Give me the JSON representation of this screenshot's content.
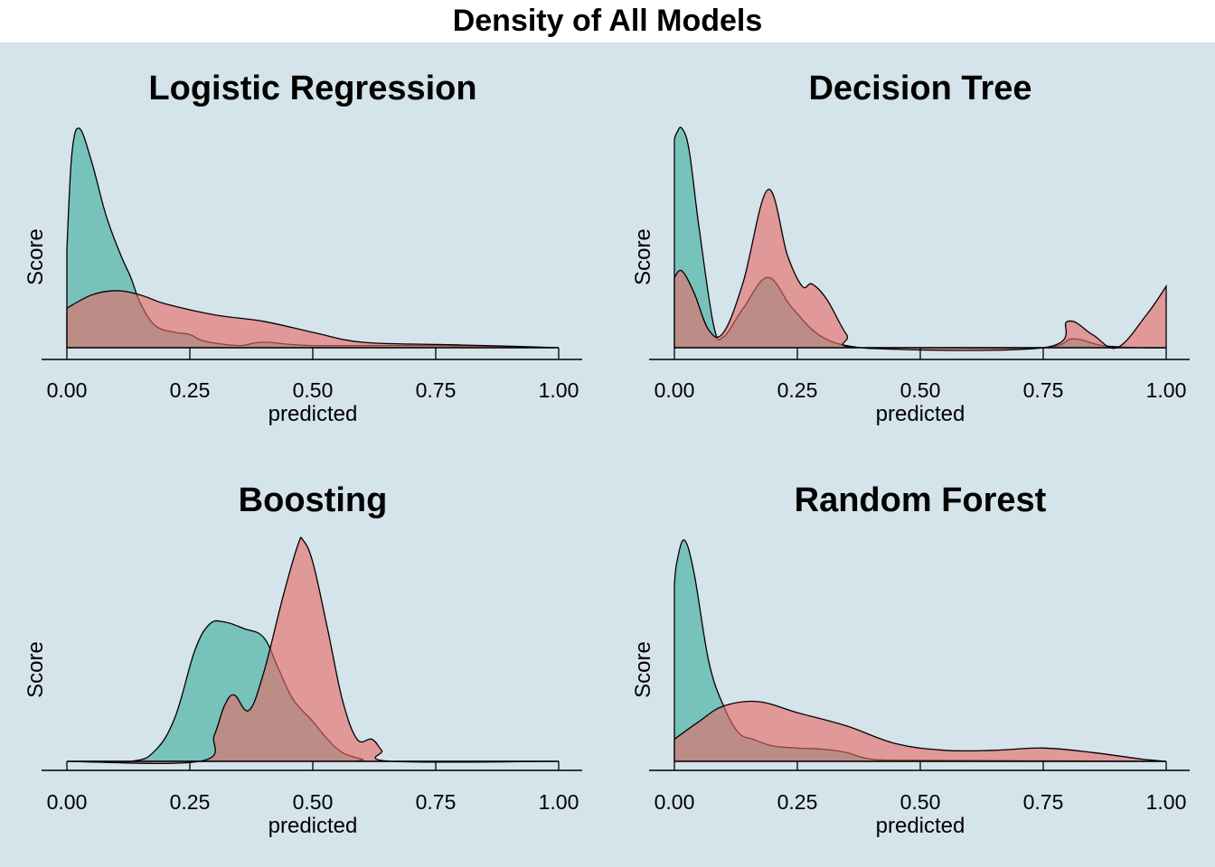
{
  "title": "Density of All Models",
  "colors": {
    "background": "#d5e3ea",
    "series_a": "#3eaf9c",
    "series_b": "#e66a66",
    "axis": "#000000"
  },
  "chart_data": [
    {
      "type": "area",
      "title": "Logistic Regression",
      "xlabel": "predicted",
      "ylabel": "Score",
      "xlim": [
        0,
        1
      ],
      "x_ticks": [
        "0.00",
        "0.25",
        "0.50",
        "0.75",
        "1.00"
      ],
      "y_ticks_shown": false,
      "grid": false,
      "series": [
        {
          "x": [
            0,
            0.01,
            0.025,
            0.05,
            0.08,
            0.11,
            0.13,
            0.15,
            0.18,
            0.22,
            0.25,
            0.28,
            0.35,
            0.4,
            0.5,
            0.75,
            1.0
          ],
          "y": [
            0.45,
            0.88,
            1.0,
            0.85,
            0.6,
            0.42,
            0.32,
            0.2,
            0.1,
            0.07,
            0.06,
            0.03,
            0.01,
            0.025,
            0.01,
            0.01,
            0
          ]
        },
        {
          "x": [
            0,
            0.05,
            0.1,
            0.15,
            0.2,
            0.3,
            0.4,
            0.5,
            0.6,
            0.75,
            0.85,
            1.0
          ],
          "y": [
            0.18,
            0.24,
            0.26,
            0.24,
            0.2,
            0.15,
            0.12,
            0.07,
            0.025,
            0.015,
            0.01,
            0
          ]
        }
      ]
    },
    {
      "type": "area",
      "title": "Decision Tree",
      "xlabel": "predicted",
      "ylabel": "Score",
      "xlim": [
        0,
        1
      ],
      "x_ticks": [
        "0.00",
        "0.25",
        "0.50",
        "0.75",
        "1.00"
      ],
      "y_ticks_shown": false,
      "grid": false,
      "series": [
        {
          "x": [
            0,
            0.005,
            0.015,
            0.03,
            0.05,
            0.08,
            0.1,
            0.14,
            0.19,
            0.24,
            0.3,
            0.38,
            0.5,
            0.75,
            0.81,
            0.87,
            0.95,
            1.0
          ],
          "y": [
            0.95,
            0.98,
            1.0,
            0.9,
            0.55,
            0.1,
            0.05,
            0.18,
            0.32,
            0.18,
            0.05,
            0,
            0,
            0,
            0.04,
            0.01,
            0,
            0
          ]
        },
        {
          "x": [
            0,
            0.015,
            0.04,
            0.07,
            0.1,
            0.14,
            0.19,
            0.23,
            0.26,
            0.28,
            0.31,
            0.35,
            0.38,
            0.75,
            0.8,
            0.85,
            0.9,
            0.96,
            1.0
          ],
          "y": [
            0.32,
            0.35,
            0.25,
            0.08,
            0.07,
            0.3,
            0.72,
            0.42,
            0.28,
            0.29,
            0.22,
            0.06,
            0,
            0,
            0.12,
            0.06,
            0,
            0.15,
            0.28
          ]
        }
      ]
    },
    {
      "type": "area",
      "title": "Boosting",
      "xlabel": "predicted",
      "ylabel": "Score",
      "xlim": [
        0,
        1
      ],
      "x_ticks": [
        "0.00",
        "0.25",
        "0.50",
        "0.75",
        "1.00"
      ],
      "y_ticks_shown": false,
      "grid": false,
      "series": [
        {
          "x": [
            0,
            0.13,
            0.18,
            0.22,
            0.26,
            0.29,
            0.32,
            0.36,
            0.4,
            0.43,
            0.46,
            0.5,
            0.53,
            0.56,
            0.6,
            0.63,
            1.0
          ],
          "y": [
            0,
            0,
            0.05,
            0.2,
            0.5,
            0.62,
            0.63,
            0.6,
            0.56,
            0.42,
            0.28,
            0.18,
            0.1,
            0.04,
            0.01,
            0,
            0
          ]
        },
        {
          "x": [
            0,
            0.27,
            0.3,
            0.32,
            0.34,
            0.37,
            0.4,
            0.44,
            0.47,
            0.48,
            0.5,
            0.53,
            0.56,
            0.59,
            0.62,
            0.64,
            0.66,
            1.0
          ],
          "y": [
            0,
            0,
            0.12,
            0.25,
            0.3,
            0.23,
            0.4,
            0.75,
            0.98,
            1.0,
            0.9,
            0.6,
            0.28,
            0.1,
            0.1,
            0.05,
            0,
            0
          ]
        }
      ]
    },
    {
      "type": "area",
      "title": "Random Forest",
      "xlabel": "predicted",
      "ylabel": "Score",
      "xlim": [
        0,
        1
      ],
      "x_ticks": [
        "0.00",
        "0.25",
        "0.50",
        "0.75",
        "1.00"
      ],
      "y_ticks_shown": false,
      "grid": false,
      "series": [
        {
          "x": [
            0,
            0.005,
            0.02,
            0.04,
            0.07,
            0.1,
            0.13,
            0.16,
            0.2,
            0.25,
            0.3,
            0.35,
            0.4,
            0.5,
            1.0
          ],
          "y": [
            0.8,
            0.9,
            1.0,
            0.85,
            0.45,
            0.25,
            0.13,
            0.1,
            0.07,
            0.06,
            0.055,
            0.04,
            0.01,
            0.005,
            0
          ]
        },
        {
          "x": [
            0,
            0.05,
            0.1,
            0.17,
            0.25,
            0.35,
            0.45,
            0.55,
            0.65,
            0.75,
            0.85,
            0.95,
            1.0
          ],
          "y": [
            0.1,
            0.18,
            0.25,
            0.27,
            0.22,
            0.16,
            0.08,
            0.05,
            0.05,
            0.06,
            0.04,
            0.01,
            0
          ]
        }
      ]
    }
  ]
}
